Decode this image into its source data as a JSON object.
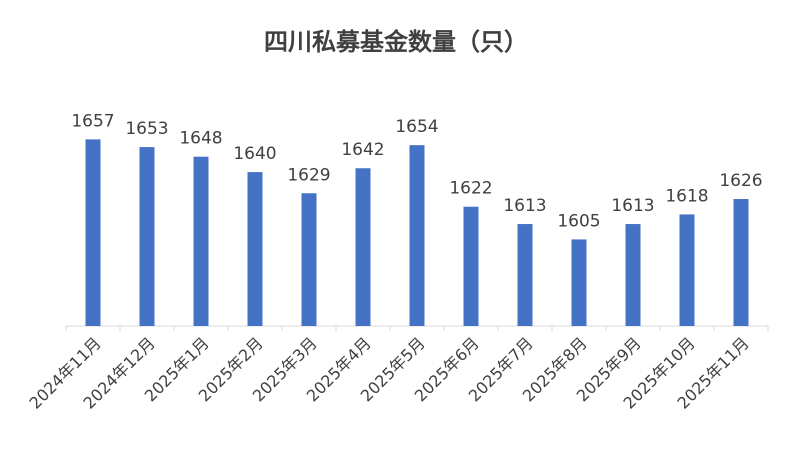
{
  "chart_data": {
    "type": "bar",
    "title": "四川私募基金数量（只）",
    "categories": [
      "2024年11月",
      "2024年12月",
      "2025年1月",
      "2025年2月",
      "2025年3月",
      "2025年4月",
      "2025年5月",
      "2025年6月",
      "2025年7月",
      "2025年8月",
      "2025年9月",
      "2025年10月",
      "2025年11月"
    ],
    "values": [
      1657,
      1653,
      1648,
      1640,
      1629,
      1642,
      1654,
      1622,
      1613,
      1605,
      1613,
      1618,
      1626
    ],
    "data_labels": [
      "1657",
      "1653",
      "1648",
      "1640",
      "1629",
      "1642",
      "1654",
      "1622",
      "1613",
      "1605",
      "1613",
      "1618",
      "1626"
    ],
    "xlabel": "",
    "ylabel": "",
    "ylim": [
      1560,
      1665
    ],
    "grid": false,
    "legend": "none",
    "bar_color": "#4472C4",
    "axis_color": "#D9D9D9",
    "label_color": "#404040"
  }
}
